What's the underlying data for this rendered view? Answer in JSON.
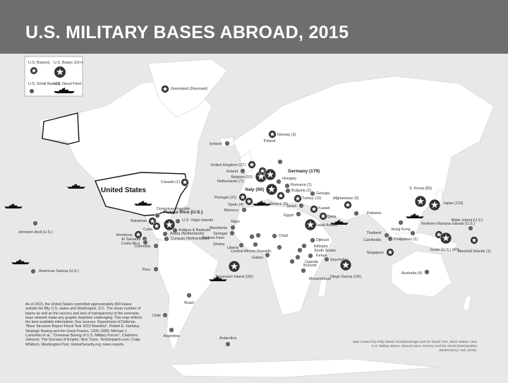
{
  "title": "U.S. MILITARY BASES ABROAD, 2015",
  "legend": {
    "base": "U.S. Base(s)",
    "bases_large": "U.S. Bases (10+)",
    "small_base": "U.S. Small Base(s)",
    "naval_fleet": "U.S. Naval Fleet"
  },
  "country_label": "United States",
  "colors": {
    "title_bar": "#6e6e6e",
    "ocean": "#e8e8e8",
    "land": "#ffffff",
    "marker": "#333333"
  },
  "bases": [
    {
      "label": "Greenland (Denmark)",
      "size": "medium"
    },
    {
      "label": "Iceland",
      "size": "small"
    },
    {
      "label": "Norway (3)",
      "size": "medium"
    },
    {
      "label": "Poland",
      "size": "small"
    },
    {
      "label": "United Kingdom (27)",
      "size": "medium"
    },
    {
      "label": "Ireland",
      "size": "small"
    },
    {
      "label": "Belgium (10)",
      "size": "large"
    },
    {
      "label": "Netherlands (7)",
      "size": "medium"
    },
    {
      "label": "Germany (179)",
      "size": "large"
    },
    {
      "label": "Italy (50)",
      "size": "large"
    },
    {
      "label": "Portugal (21)",
      "size": "medium"
    },
    {
      "label": "Spain (4)",
      "size": "medium"
    },
    {
      "label": "Morocco",
      "size": "small"
    },
    {
      "label": "Hungary",
      "size": "small"
    },
    {
      "label": "Romania (1)",
      "size": "small"
    },
    {
      "label": "Bulgaria (2)",
      "size": "small"
    },
    {
      "label": "Georgia",
      "size": "small"
    },
    {
      "label": "Greece (8)",
      "size": "medium"
    },
    {
      "label": "Turkey (12)",
      "size": "medium"
    },
    {
      "label": "Afghanistan (9)",
      "size": "medium"
    },
    {
      "label": "Pakistan",
      "size": "small"
    },
    {
      "label": "Israel",
      "size": "small"
    },
    {
      "label": "Egypt",
      "size": "small"
    },
    {
      "label": "Kuwait",
      "size": "medium"
    },
    {
      "label": "Saudi Arabia",
      "size": "large"
    },
    {
      "label": "Qatar",
      "size": "medium"
    },
    {
      "label": "Djibouti",
      "size": "small"
    },
    {
      "label": "Ethiopia",
      "size": "small"
    },
    {
      "label": "South Sudan",
      "size": "small"
    },
    {
      "label": "Kenya",
      "size": "small"
    },
    {
      "label": "Uganda",
      "size": "small"
    },
    {
      "label": "Burundi",
      "size": "small"
    },
    {
      "label": "Seychelles",
      "size": "small"
    },
    {
      "label": "Mozambique",
      "size": "small"
    },
    {
      "label": "Diego Garcia (UK)",
      "size": "large"
    },
    {
      "label": "Ascension Island (UK)",
      "size": "large"
    },
    {
      "label": "Niger",
      "size": "small"
    },
    {
      "label": "Mauritania",
      "size": "small"
    },
    {
      "label": "Senegal",
      "size": "small"
    },
    {
      "label": "Burkina Faso",
      "size": "small"
    },
    {
      "label": "Ghana",
      "size": "small"
    },
    {
      "label": "Liberia",
      "size": "small"
    },
    {
      "label": "Central African Republic",
      "size": "small"
    },
    {
      "label": "Gabon",
      "size": "small"
    },
    {
      "label": "Chad",
      "size": "small"
    },
    {
      "label": "S. Korea (83)",
      "size": "large"
    },
    {
      "label": "Japan (113)",
      "size": "large"
    },
    {
      "label": "Northern Mariana Islands (U.S.)",
      "size": "medium"
    },
    {
      "label": "Guam (U.S.) (47)",
      "size": "large"
    },
    {
      "label": "Wake Island (U.S.)",
      "size": "small"
    },
    {
      "label": "Marshall Islands (1)",
      "size": "medium"
    },
    {
      "label": "Philippines (1)",
      "size": "small"
    },
    {
      "label": "Hong Kong",
      "size": "small"
    },
    {
      "label": "Thailand",
      "size": "small"
    },
    {
      "label": "Cambodia",
      "size": "small"
    },
    {
      "label": "Singapore",
      "size": "medium"
    },
    {
      "label": "Australia (4)",
      "size": "small"
    },
    {
      "label": "Canada (1)",
      "size": "medium"
    },
    {
      "label": "Bahamas",
      "size": "medium"
    },
    {
      "label": "Cuba",
      "size": "medium"
    },
    {
      "label": "Dominican Republic",
      "size": "small"
    },
    {
      "label": "Puerto Rico (U.S.)",
      "size": "large"
    },
    {
      "label": "U.S. Virgin Islands",
      "size": "small"
    },
    {
      "label": "Antigua & Barbuda",
      "size": "small"
    },
    {
      "label": "Aruba (Netherlands)",
      "size": "small"
    },
    {
      "label": "Curaçao (Netherlands)",
      "size": "small"
    },
    {
      "label": "Honduras",
      "size": "medium"
    },
    {
      "label": "El Salvador",
      "size": "small"
    },
    {
      "label": "Costa Rica",
      "size": "small"
    },
    {
      "label": "Colombia",
      "size": "small"
    },
    {
      "label": "Peru",
      "size": "small"
    },
    {
      "label": "Brazil",
      "size": "small"
    },
    {
      "label": "Chile",
      "size": "small"
    },
    {
      "label": "Argentina",
      "size": "small"
    },
    {
      "label": "Antarctica",
      "size": "small"
    },
    {
      "label": "Johnston Atoll (U.S.)",
      "size": "small"
    },
    {
      "label": "American Samoa (U.S.)",
      "size": "small"
    }
  ],
  "note": "As of 2015, the United States controlled approximately 800 bases outside the fifty U.S. states and Washington, D.C. The sheer number of bases as well as the secrecy and lack of transparency of the overseas base network make any graphic depiction challenging. This map reflects the best available information. Key sources: Department of Defense, \"Base Structure Report Fiscal Year 2015 Baseline\"; Robert E. Harkavy, Strategic Basing and the Great Powers, 1200–2000; Michael J. Lostumbo et al., \"Overseas Basing of U.S. Military Forces\"; Chalmers Johnson, The Sorrows of Empire; Nick Turse, TomDispatch.com; Craig Whitlock, Washington Post; GlobalSecurity.org; news reports.",
  "credit": "Map created by Kelly Martin Ecoatlasdesign.com for David Vine, Base Nation: How U.S. Military Bases Abroad Harm America and the World (Metropolitan Books/Henry Holt, 2015)."
}
